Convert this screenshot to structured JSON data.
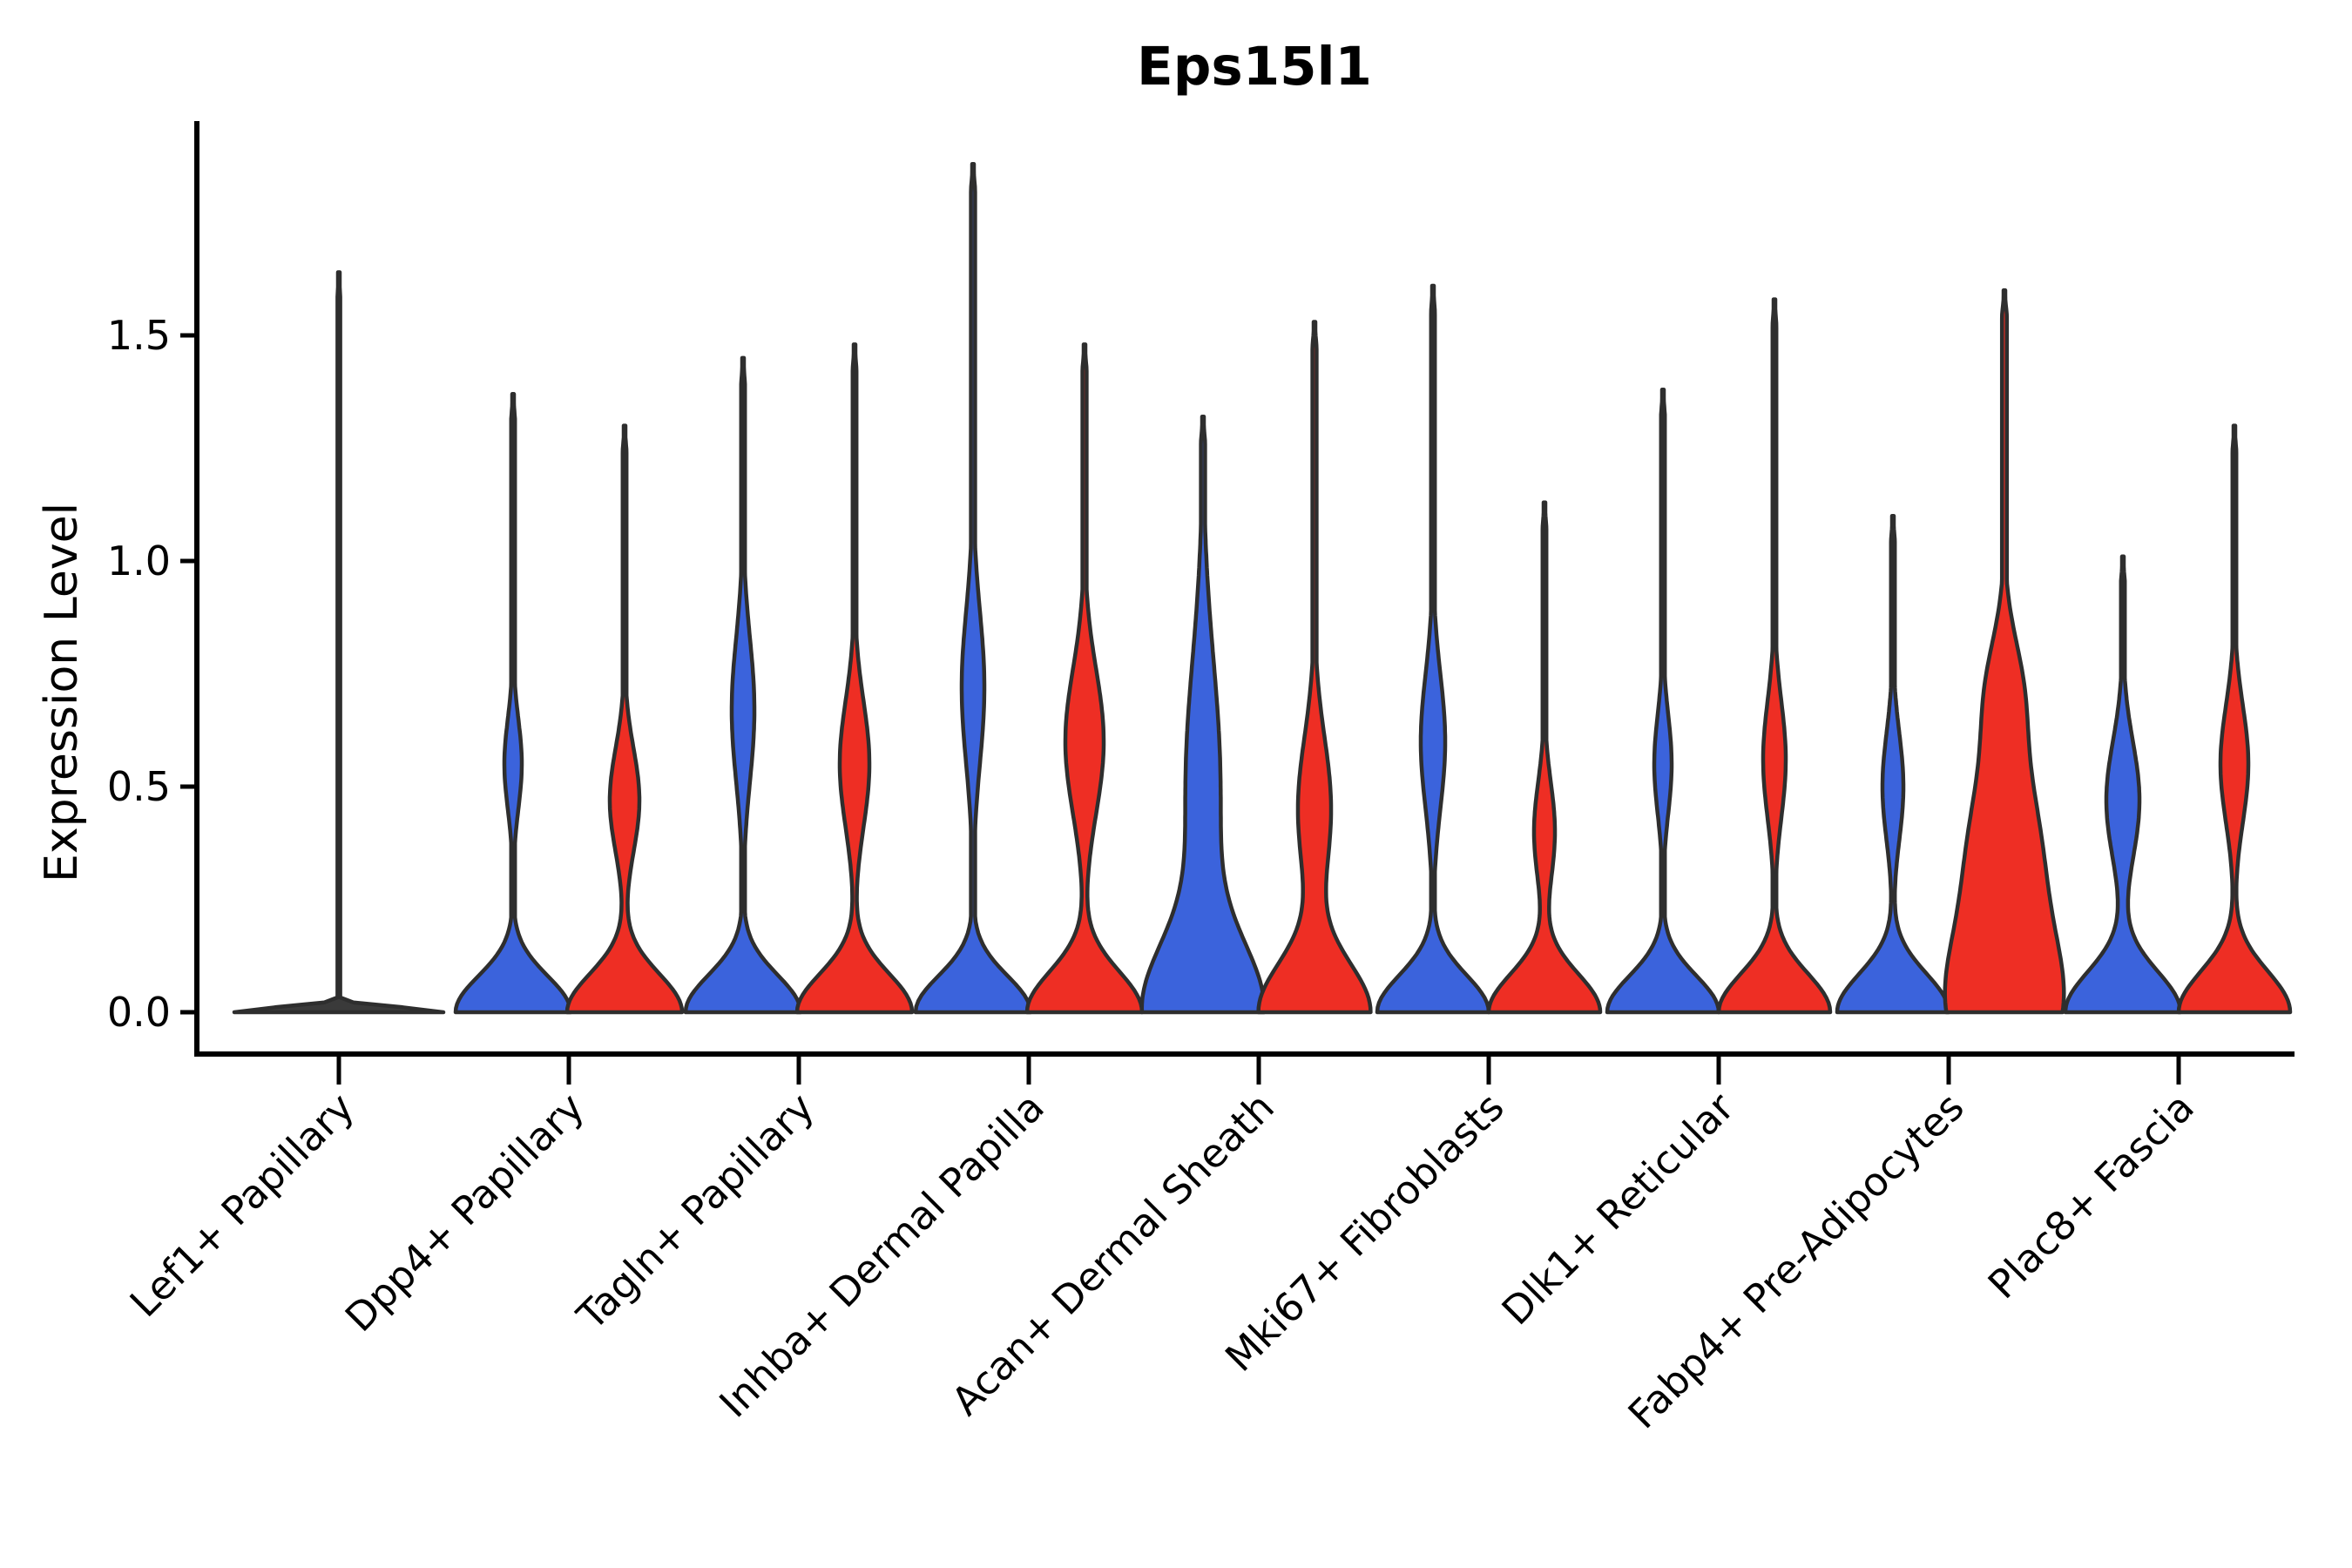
{
  "chart_data": {
    "type": "violin",
    "title": "Eps15l1",
    "ylabel": "Expression Level",
    "xlabel": "",
    "ytick_labels": [
      "0.0",
      "0.5",
      "1.0",
      "1.5"
    ],
    "ytick_values": [
      0.0,
      0.5,
      1.0,
      1.5
    ],
    "ylim": [
      -0.09,
      1.97
    ],
    "grid": false,
    "legend": "none",
    "categories": [
      "Lef1+ Papillary",
      "Dpp4+ Papillary",
      "Tagln+ Papillary",
      "Inhba+ Dermal Papilla",
      "Acan+ Dermal Sheath",
      "Mki67+ Fibroblasts",
      "Dlk1+ Reticular",
      "Fabp4+ Pre-Adipocytes",
      "Plac8+ Fascia"
    ],
    "groups": [
      {
        "name": "group-1",
        "color": "#3B63DC"
      },
      {
        "name": "group-2",
        "color": "#EE2E24"
      }
    ],
    "series": [
      {
        "name": "group-1-blue",
        "max_expression": [
          1.64,
          1.37,
          1.45,
          1.88,
          1.32,
          1.61,
          1.38,
          1.1,
          1.01
        ]
      },
      {
        "name": "group-2-red",
        "max_expression": [
          1.64,
          1.3,
          1.48,
          1.48,
          1.53,
          1.13,
          1.58,
          1.6,
          1.3
        ]
      }
    ],
    "violins": [
      {
        "category": "Lef1+ Papillary",
        "series": [
          {
            "group": "both-collapsed",
            "color": "#3a3a3a",
            "offset": 0,
            "max": 1.64,
            "base_w": 120,
            "base_sig": 0.011,
            "b1c": 0,
            "b1w": 0,
            "b1s": 1,
            "b2c": 0,
            "b2w": 0,
            "b2s": 1,
            "min_w": 1.6
          }
        ]
      },
      {
        "category": "Dpp4+ Papillary",
        "series": [
          {
            "group": "group-1",
            "color": "#3B63DC",
            "offset": -64,
            "max": 1.37,
            "base_w": 66,
            "base_sig": 0.08,
            "b1c": 0.55,
            "b1w": 10,
            "b1s": 0.1,
            "b2c": 0,
            "b2w": 0,
            "b2s": 1,
            "min_w": 2.2
          },
          {
            "group": "group-2",
            "color": "#EE2E24",
            "offset": 64,
            "max": 1.3,
            "base_w": 66,
            "base_sig": 0.085,
            "b1c": 0.47,
            "b1w": 17,
            "b1s": 0.115,
            "b2c": 0,
            "b2w": 0,
            "b2s": 1,
            "min_w": 2.2
          }
        ]
      },
      {
        "category": "Tagln+ Papillary",
        "series": [
          {
            "group": "group-1",
            "color": "#3B63DC",
            "offset": -64,
            "max": 1.45,
            "base_w": 66,
            "base_sig": 0.082,
            "b1c": 0.67,
            "b1w": 13,
            "b1s": 0.16,
            "b2c": 0,
            "b2w": 0,
            "b2s": 1,
            "min_w": 2.2
          },
          {
            "group": "group-2",
            "color": "#EE2E24",
            "offset": 64,
            "max": 1.48,
            "base_w": 66,
            "base_sig": 0.085,
            "b1c": 0.55,
            "b1w": 17,
            "b1s": 0.14,
            "b2c": 0,
            "b2w": 0,
            "b2s": 1,
            "min_w": 2.2
          }
        ]
      },
      {
        "category": "Inhba+ Dermal Papilla",
        "series": [
          {
            "group": "group-1",
            "color": "#3B63DC",
            "offset": -64,
            "max": 1.88,
            "base_w": 66,
            "base_sig": 0.08,
            "b1c": 0.72,
            "b1w": 13,
            "b1s": 0.17,
            "b2c": 0,
            "b2w": 0,
            "b2s": 1,
            "min_w": 2.4
          },
          {
            "group": "group-2",
            "color": "#EE2E24",
            "offset": 64,
            "max": 1.48,
            "base_w": 66,
            "base_sig": 0.09,
            "b1c": 0.6,
            "b1w": 22,
            "b1s": 0.16,
            "b2c": 0,
            "b2w": 0,
            "b2s": 1,
            "min_w": 2.4
          }
        ]
      },
      {
        "category": "Acan+ Dermal Sheath",
        "series": [
          {
            "group": "group-1",
            "color": "#3B63DC",
            "offset": -64,
            "max": 1.32,
            "base_w": 66,
            "base_sig": 0.15,
            "b1c": 0.5,
            "b1w": 20,
            "b1s": 0.28,
            "b2c": 0,
            "b2w": 0,
            "b2s": 1,
            "min_w": 2.4
          },
          {
            "group": "group-2",
            "color": "#EE2E24",
            "offset": 64,
            "max": 1.53,
            "base_w": 64,
            "base_sig": 0.11,
            "b1c": 0.45,
            "b1w": 19,
            "b1s": 0.16,
            "b2c": 0,
            "b2w": 0,
            "b2s": 1,
            "min_w": 2.4
          }
        ]
      },
      {
        "category": "Mki67+ Fibroblasts",
        "series": [
          {
            "group": "group-1",
            "color": "#3B63DC",
            "offset": -64,
            "max": 1.61,
            "base_w": 64,
            "base_sig": 0.082,
            "b1c": 0.6,
            "b1w": 14,
            "b1s": 0.15,
            "b2c": 0,
            "b2w": 0,
            "b2s": 1,
            "min_w": 2.2
          },
          {
            "group": "group-2",
            "color": "#EE2E24",
            "offset": 64,
            "max": 1.13,
            "base_w": 64,
            "base_sig": 0.085,
            "b1c": 0.4,
            "b1w": 12,
            "b1s": 0.11,
            "b2c": 0,
            "b2w": 0,
            "b2s": 1,
            "min_w": 2.2
          }
        ]
      },
      {
        "category": "Dlk1+ Reticular",
        "series": [
          {
            "group": "group-1",
            "color": "#3B63DC",
            "offset": -64,
            "max": 1.38,
            "base_w": 64,
            "base_sig": 0.08,
            "b1c": 0.55,
            "b1w": 10,
            "b1s": 0.11,
            "b2c": 0,
            "b2w": 0,
            "b2s": 1,
            "min_w": 2.2
          },
          {
            "group": "group-2",
            "color": "#EE2E24",
            "offset": 64,
            "max": 1.58,
            "base_w": 64,
            "base_sig": 0.085,
            "b1c": 0.56,
            "b1w": 13,
            "b1s": 0.13,
            "b2c": 0,
            "b2w": 0,
            "b2s": 1,
            "min_w": 2.2
          }
        ]
      },
      {
        "category": "Fabp4+ Pre-Adipocytes",
        "series": [
          {
            "group": "group-1",
            "color": "#3B63DC",
            "offset": -64,
            "max": 1.1,
            "base_w": 64,
            "base_sig": 0.085,
            "b1c": 0.5,
            "b1w": 12,
            "b1s": 0.12,
            "b2c": 0,
            "b2w": 0,
            "b2s": 1,
            "min_w": 2.2
          },
          {
            "group": "group-2",
            "color": "#EE2E24",
            "offset": 64,
            "max": 1.6,
            "base_w": 58,
            "base_sig": 0.16,
            "b1c": 0.35,
            "b1w": 40,
            "b1s": 0.2,
            "b2c": 0.72,
            "b2w": 16,
            "b2s": 0.12,
            "min_w": 2.8
          }
        ]
      },
      {
        "category": "Plac8+ Fascia",
        "series": [
          {
            "group": "group-1",
            "color": "#3B63DC",
            "offset": -64,
            "max": 1.01,
            "base_w": 66,
            "base_sig": 0.09,
            "b1c": 0.47,
            "b1w": 19,
            "b1s": 0.13,
            "b2c": 0,
            "b2w": 0,
            "b2s": 1,
            "min_w": 2.2
          },
          {
            "group": "group-2",
            "color": "#EE2E24",
            "offset": 64,
            "max": 1.3,
            "base_w": 64,
            "base_sig": 0.09,
            "b1c": 0.55,
            "b1w": 16,
            "b1s": 0.13,
            "b2c": 0,
            "b2w": 0,
            "b2s": 1,
            "min_w": 2.2
          }
        ]
      }
    ],
    "style": {
      "outline_color": "#2E2E2E",
      "axis_color": "#000000",
      "background": "#FFFFFF",
      "blue": "#3B63DC",
      "red": "#EE2E24"
    }
  }
}
